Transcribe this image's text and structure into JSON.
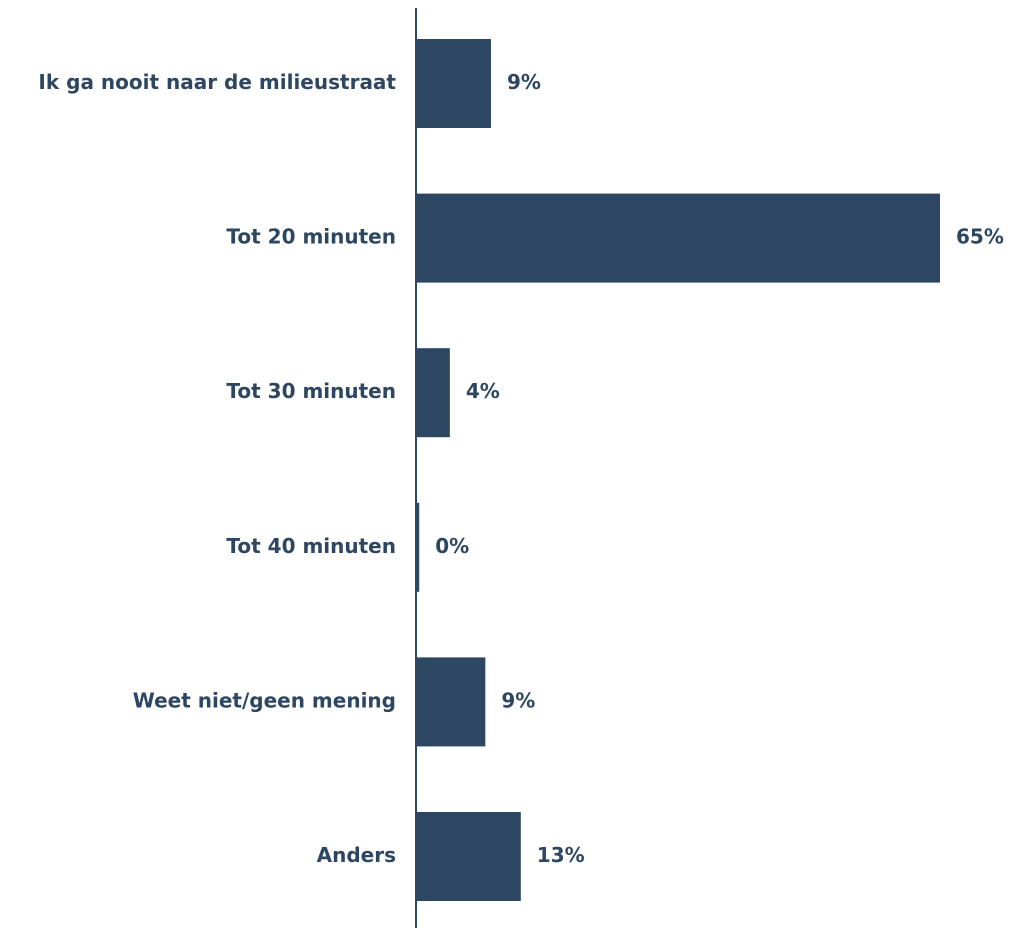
{
  "colors": {
    "bar": "#2d4661",
    "text": "#2d4661",
    "axis": "#2d4661"
  },
  "chart_data": {
    "type": "bar",
    "orientation": "horizontal",
    "categories": [
      "Ik ga nooit naar de milieustraat",
      "Tot 20 minuten",
      "Tot 30 minuten",
      "Tot 40 minuten",
      "Weet niet/geen mening",
      "Anders"
    ],
    "values": [
      9.3,
      65,
      4.2,
      0.4,
      8.6,
      13
    ],
    "value_labels": [
      "9%",
      "65%",
      "4%",
      "0%",
      "9%",
      "13%"
    ],
    "xlim": [
      0,
      65
    ],
    "grid": false,
    "title": "",
    "xlabel": "",
    "ylabel": ""
  }
}
